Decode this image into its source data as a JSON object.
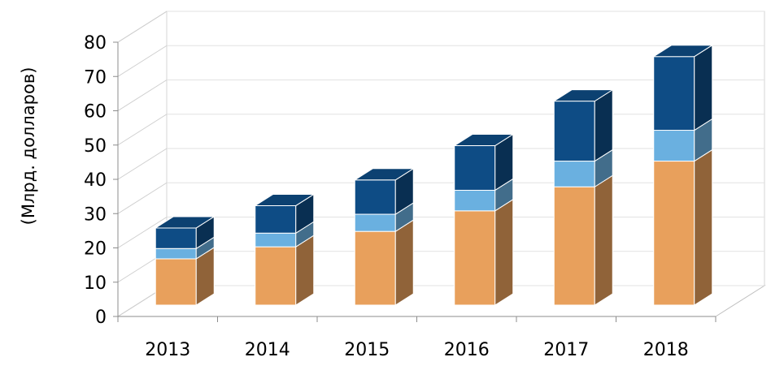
{
  "chart_data": {
    "type": "bar",
    "stacked": true,
    "three_d": true,
    "ylabel": "(Млрд. долларов)",
    "xlabel": "",
    "title": "",
    "ylim": [
      0,
      80
    ],
    "yticks": [
      "0",
      "10",
      "20",
      "30",
      "40",
      "50",
      "60",
      "70",
      "80"
    ],
    "categories": [
      "2013",
      "2014",
      "2015",
      "2016",
      "2017",
      "2018"
    ],
    "series": [
      {
        "color": "#E8A05C",
        "values": [
          13.5,
          17,
          21.5,
          27.5,
          34.5,
          42
        ]
      },
      {
        "color": "#6AB0E0",
        "values": [
          3,
          4,
          5,
          6,
          7.5,
          9
        ]
      },
      {
        "color": "#0E4C85",
        "values": [
          6,
          8,
          10,
          13,
          17.5,
          21.5
        ]
      }
    ],
    "grid": true,
    "legend": "none"
  }
}
